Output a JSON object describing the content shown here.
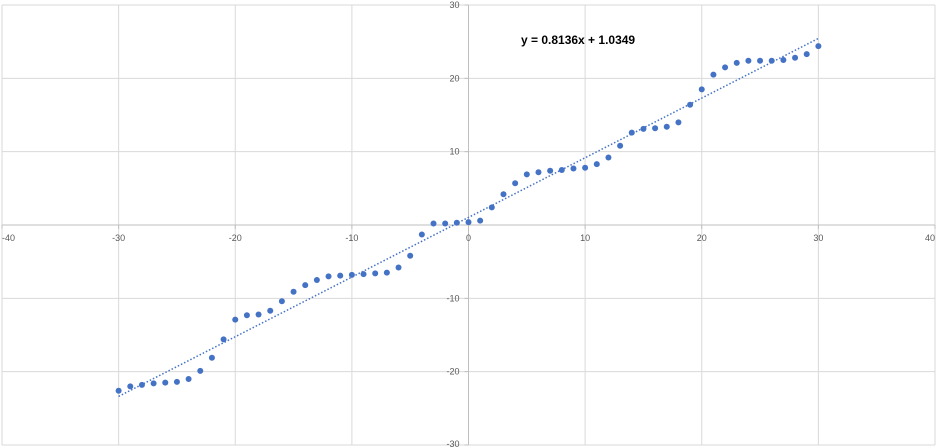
{
  "chart_data": {
    "type": "scatter",
    "title": "",
    "xlabel": "",
    "ylabel": "",
    "xlim": [
      -40,
      40
    ],
    "ylim": [
      -30,
      30
    ],
    "x_ticks": [
      -40,
      -30,
      -20,
      -10,
      0,
      10,
      20,
      30,
      40
    ],
    "y_ticks": [
      -30,
      -20,
      -10,
      0,
      10,
      20,
      30
    ],
    "x_tick_labels": [
      "-40",
      "-30",
      "-20",
      "-10",
      "0",
      "10",
      "20",
      "30",
      "40"
    ],
    "y_tick_labels": [
      "-30",
      "-20",
      "-10",
      "",
      "10",
      "20",
      "30"
    ],
    "grid": true,
    "legend": "none",
    "marker_color": "#4472C4",
    "trendline_color": "#4472C4",
    "grid_color": "#D9D9D9",
    "axis_color": "#BFBFBF",
    "series": [
      {
        "x": [
          -30,
          -29,
          -28,
          -27,
          -26,
          -25,
          -24,
          -23,
          -22,
          -21,
          -20,
          -19,
          -18,
          -17,
          -16,
          -15,
          -14,
          -13,
          -12,
          -11,
          -10,
          -9,
          -8,
          -7,
          -6,
          -5,
          -4,
          -3,
          -2,
          -1,
          0,
          1,
          2,
          3,
          4,
          5,
          6,
          7,
          8,
          9,
          10,
          11,
          12,
          13,
          14,
          15,
          16,
          17,
          18,
          19,
          20,
          21,
          22,
          23,
          24,
          25,
          26,
          27,
          28,
          29,
          30
        ],
        "y": [
          -22.6,
          -22.0,
          -21.8,
          -21.6,
          -21.5,
          -21.4,
          -21.0,
          -19.9,
          -18.1,
          -15.6,
          -12.9,
          -12.3,
          -12.2,
          -11.7,
          -10.4,
          -9.1,
          -8.2,
          -7.5,
          -7.0,
          -6.9,
          -6.8,
          -6.7,
          -6.6,
          -6.5,
          -5.8,
          -4.2,
          -1.3,
          0.2,
          0.2,
          0.3,
          0.4,
          0.6,
          2.4,
          4.2,
          5.7,
          6.9,
          7.2,
          7.4,
          7.5,
          7.7,
          7.8,
          8.3,
          9.2,
          10.8,
          12.6,
          13.1,
          13.2,
          13.4,
          14.0,
          16.4,
          18.5,
          20.5,
          21.5,
          22.1,
          22.4,
          22.4,
          22.4,
          22.5,
          22.8,
          23.3,
          24.4
        ]
      }
    ],
    "trendline": {
      "slope": 0.8136,
      "intercept": 1.0349,
      "x_range": [
        -30,
        30
      ],
      "style": "dotted",
      "equation_label": "y = 0.8136x + 1.0349"
    }
  }
}
